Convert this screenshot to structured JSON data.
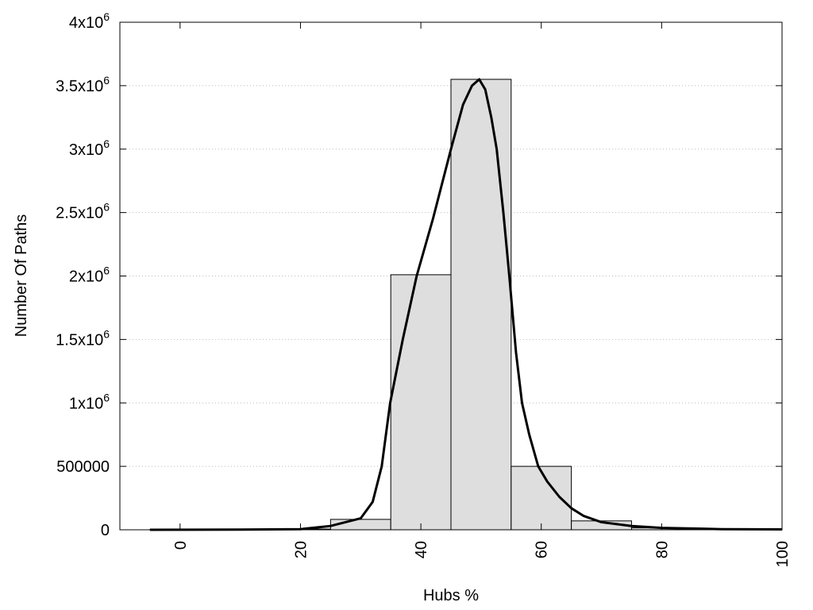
{
  "chart_data": {
    "type": "bar",
    "title": "",
    "xlabel": "Hubs %",
    "ylabel": "Number Of Paths",
    "xlim": [
      -10,
      100
    ],
    "ylim": [
      0,
      4000000
    ],
    "grid": "horizontal dotted",
    "x_ticks": [
      0,
      20,
      40,
      60,
      80,
      100
    ],
    "x_tick_labels": [
      "0",
      "20",
      "40",
      "60",
      "80",
      "100"
    ],
    "y_ticks": [
      0,
      500000,
      1000000,
      1500000,
      2000000,
      2500000,
      3000000,
      3500000,
      4000000
    ],
    "y_tick_labels": [
      {
        "base": "0",
        "exp": ""
      },
      {
        "base": "500000",
        "exp": ""
      },
      {
        "base": "1x10",
        "exp": "6"
      },
      {
        "base": "1.5x10",
        "exp": "6"
      },
      {
        "base": "2x10",
        "exp": "6"
      },
      {
        "base": "2.5x10",
        "exp": "6"
      },
      {
        "base": "3x10",
        "exp": "6"
      },
      {
        "base": "3.5x10",
        "exp": "6"
      },
      {
        "base": "4x10",
        "exp": "6"
      }
    ],
    "bar_width": 10,
    "bars": [
      {
        "x": 0,
        "value": 3000
      },
      {
        "x": 10,
        "value": 3000
      },
      {
        "x": 20,
        "value": 6000
      },
      {
        "x": 30,
        "value": 82000
      },
      {
        "x": 40,
        "value": 2010000
      },
      {
        "x": 50,
        "value": 3550000
      },
      {
        "x": 60,
        "value": 500000
      },
      {
        "x": 70,
        "value": 70000
      },
      {
        "x": 80,
        "value": 15000
      },
      {
        "x": 90,
        "value": 5000
      },
      {
        "x": 100,
        "value": 3000
      }
    ],
    "bar_color": "#dedede",
    "curve": {
      "color": "#000000",
      "points": [
        [
          -5,
          0
        ],
        [
          10,
          2000
        ],
        [
          20,
          5000
        ],
        [
          25,
          30000
        ],
        [
          30,
          90000
        ],
        [
          32,
          220000
        ],
        [
          33.5,
          500000
        ],
        [
          34.9,
          1000000
        ],
        [
          37,
          1500000
        ],
        [
          39.3,
          2000000
        ],
        [
          42,
          2450000
        ],
        [
          45,
          3000000
        ],
        [
          47,
          3350000
        ],
        [
          48.5,
          3500000
        ],
        [
          49.7,
          3550000
        ],
        [
          50.7,
          3470000
        ],
        [
          51.7,
          3250000
        ],
        [
          52.6,
          3000000
        ],
        [
          53.7,
          2500000
        ],
        [
          54.7,
          2000000
        ],
        [
          55.8,
          1400000
        ],
        [
          56.8,
          1000000
        ],
        [
          58,
          750000
        ],
        [
          59.5,
          500000
        ],
        [
          61,
          380000
        ],
        [
          63,
          260000
        ],
        [
          65,
          170000
        ],
        [
          67,
          110000
        ],
        [
          70,
          60000
        ],
        [
          75,
          30000
        ],
        [
          80,
          15000
        ],
        [
          90,
          5000
        ],
        [
          100,
          3000
        ]
      ]
    }
  }
}
